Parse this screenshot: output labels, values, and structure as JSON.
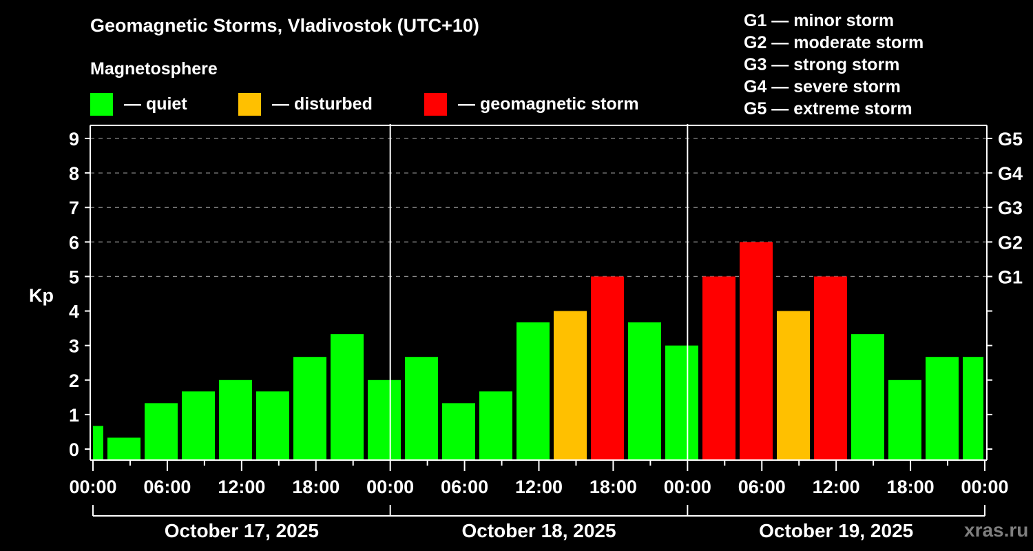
{
  "header": {
    "title": "Geomagnetic Storms, Vladivostok (UTC+10)",
    "subtitle": "Magnetosphere"
  },
  "legend": {
    "items": [
      {
        "label": "— quiet",
        "color": "#00ff00"
      },
      {
        "label": "— disturbed",
        "color": "#ffc000"
      },
      {
        "label": "— geomagnetic storm",
        "color": "#ff0000"
      }
    ]
  },
  "g_scale": [
    "G1 — minor storm",
    "G2 — moderate storm",
    "G3 — strong storm",
    "G4 — severe storm",
    "G5 — extreme storm"
  ],
  "watermark": "xras.ru",
  "chart_data": {
    "type": "bar",
    "title": "Geomagnetic Storms, Vladivostok (UTC+10)",
    "ylabel": "Kp",
    "xlabel": "",
    "ylim": [
      0,
      9
    ],
    "yticks": [
      0,
      1,
      2,
      3,
      4,
      5,
      6,
      7,
      8,
      9
    ],
    "right_axis_labels": [
      {
        "kp": 5,
        "label": "G1"
      },
      {
        "kp": 6,
        "label": "G2"
      },
      {
        "kp": 7,
        "label": "G3"
      },
      {
        "kp": 8,
        "label": "G4"
      },
      {
        "kp": 9,
        "label": "G5"
      }
    ],
    "grid": "dashed horizontal lines at Kp 5–9",
    "xtick_labels": [
      "00:00",
      "06:00",
      "12:00",
      "18:00",
      "00:00",
      "06:00",
      "12:00",
      "18:00",
      "00:00",
      "06:00",
      "12:00",
      "18:00",
      "00:00"
    ],
    "days": [
      "October 17, 2025",
      "October 18, 2025",
      "October 19, 2025"
    ],
    "colors": {
      "quiet": "#00ff00",
      "disturbed": "#ffc000",
      "storm": "#ff0000"
    },
    "categories": [
      "Oct 17 00:00",
      "Oct 17 03:00",
      "Oct 17 06:00",
      "Oct 17 09:00",
      "Oct 17 12:00",
      "Oct 17 15:00",
      "Oct 17 18:00",
      "Oct 17 21:00",
      "Oct 18 00:00",
      "Oct 18 03:00",
      "Oct 18 06:00",
      "Oct 18 09:00",
      "Oct 18 12:00",
      "Oct 18 15:00",
      "Oct 18 18:00",
      "Oct 18 21:00",
      "Oct 19 00:00",
      "Oct 19 03:00",
      "Oct 19 06:00",
      "Oct 19 09:00",
      "Oct 19 12:00",
      "Oct 19 15:00",
      "Oct 19 18:00",
      "Oct 19 21:00",
      "Oct 20 00:00"
    ],
    "values": [
      0.67,
      0.33,
      1.33,
      1.67,
      2.0,
      1.67,
      2.67,
      3.33,
      2.0,
      2.67,
      1.33,
      1.67,
      3.67,
      4.0,
      5.0,
      3.67,
      3.0,
      5.0,
      6.0,
      4.0,
      5.0,
      3.33,
      2.0,
      2.67,
      2.67
    ],
    "status": [
      "quiet",
      "quiet",
      "quiet",
      "quiet",
      "quiet",
      "quiet",
      "quiet",
      "quiet",
      "quiet",
      "quiet",
      "quiet",
      "quiet",
      "quiet",
      "disturbed",
      "storm",
      "quiet",
      "quiet",
      "storm",
      "storm",
      "disturbed",
      "storm",
      "quiet",
      "quiet",
      "quiet",
      "quiet"
    ],
    "legend_position": "top"
  }
}
